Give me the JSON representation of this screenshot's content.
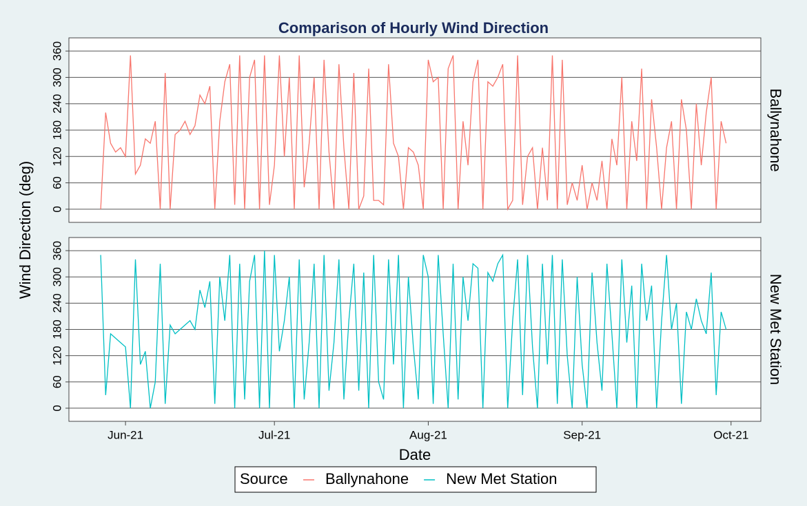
{
  "chart_data": {
    "type": "line",
    "title": "Comparison of Hourly Wind Direction",
    "x_label": "Date",
    "y_label": "Wind Direction (deg)",
    "legend_title": "Source",
    "x": [
      -5,
      -4,
      -3,
      -2,
      -1,
      0,
      1,
      2,
      3,
      4,
      5,
      6,
      7,
      8,
      9,
      10,
      11,
      12,
      13,
      14,
      15,
      16,
      17,
      18,
      19,
      20,
      21,
      22,
      23,
      24,
      25,
      26,
      27,
      28,
      29,
      30,
      31,
      32,
      33,
      34,
      35,
      36,
      37,
      38,
      39,
      40,
      41,
      42,
      43,
      44,
      45,
      46,
      47,
      48,
      49,
      50,
      51,
      52,
      53,
      54,
      55,
      56,
      57,
      58,
      59,
      60,
      61,
      62,
      63,
      64,
      65,
      66,
      67,
      68,
      69,
      70,
      71,
      72,
      73,
      74,
      75,
      76,
      77,
      78,
      79,
      80,
      81,
      82,
      83,
      84,
      85,
      86,
      87,
      88,
      89,
      90,
      91,
      92,
      93,
      94,
      95,
      96,
      97,
      98,
      99,
      100,
      101,
      102,
      103,
      104,
      105,
      106,
      107,
      108,
      109,
      110,
      111,
      112,
      113,
      114,
      115,
      116,
      117,
      118,
      119,
      120,
      121
    ],
    "series": [
      {
        "name": "Ballynahone",
        "color": "#f8766d",
        "values": [
          0,
          220,
          150,
          130,
          140,
          120,
          350,
          80,
          100,
          160,
          150,
          200,
          0,
          310,
          0,
          170,
          180,
          200,
          170,
          190,
          260,
          240,
          280,
          0,
          200,
          290,
          330,
          10,
          350,
          0,
          300,
          340,
          0,
          350,
          10,
          100,
          350,
          120,
          300,
          0,
          350,
          50,
          150,
          300,
          0,
          340,
          130,
          0,
          330,
          140,
          0,
          310,
          0,
          30,
          320,
          20,
          20,
          10,
          330,
          150,
          120,
          0,
          140,
          130,
          100,
          0,
          340,
          290,
          300,
          0,
          320,
          350,
          0,
          200,
          100,
          290,
          340,
          0,
          290,
          280,
          300,
          330,
          0,
          20,
          350,
          10,
          120,
          140,
          0,
          140,
          20,
          350,
          0,
          340,
          10,
          60,
          20,
          100,
          0,
          60,
          20,
          110,
          0,
          160,
          100,
          300,
          0,
          200,
          110,
          320,
          0,
          250,
          140,
          0,
          140,
          200,
          0,
          250,
          180,
          0,
          240,
          100,
          220,
          300,
          0,
          200,
          150
        ]
      },
      {
        "name": "New Met Station",
        "color": "#00bfc4",
        "values": [
          350,
          30,
          170,
          160,
          150,
          140,
          0,
          340,
          100,
          130,
          0,
          60,
          330,
          10,
          190,
          170,
          180,
          190,
          200,
          180,
          270,
          230,
          290,
          10,
          300,
          200,
          350,
          0,
          330,
          20,
          290,
          350,
          0,
          360,
          0,
          350,
          130,
          200,
          300,
          0,
          340,
          20,
          150,
          330,
          0,
          350,
          40,
          150,
          340,
          20,
          200,
          330,
          40,
          310,
          0,
          350,
          60,
          20,
          340,
          100,
          350,
          0,
          300,
          140,
          20,
          350,
          300,
          10,
          350,
          170,
          0,
          330,
          20,
          300,
          200,
          330,
          320,
          0,
          310,
          290,
          330,
          350,
          0,
          200,
          340,
          30,
          350,
          140,
          0,
          330,
          100,
          350,
          10,
          340,
          120,
          0,
          300,
          100,
          0,
          310,
          150,
          40,
          330,
          170,
          0,
          340,
          150,
          280,
          0,
          330,
          200,
          280,
          0,
          200,
          350,
          180,
          240,
          10,
          220,
          180,
          250,
          200,
          170,
          310,
          30,
          220,
          180
        ]
      }
    ],
    "xlim": [
      -11.4,
      128
    ],
    "xticks": [
      {
        "value": 0,
        "label": "Jun-21"
      },
      {
        "value": 30,
        "label": "Jul-21"
      },
      {
        "value": 61,
        "label": "Aug-21"
      },
      {
        "value": 92,
        "label": "Sep-21"
      },
      {
        "value": 122,
        "label": "Oct-21"
      }
    ],
    "ylim": [
      -30,
      390
    ],
    "yticks": [
      0,
      60,
      120,
      180,
      240,
      300,
      360
    ],
    "grid": true,
    "legend": "bottom"
  }
}
